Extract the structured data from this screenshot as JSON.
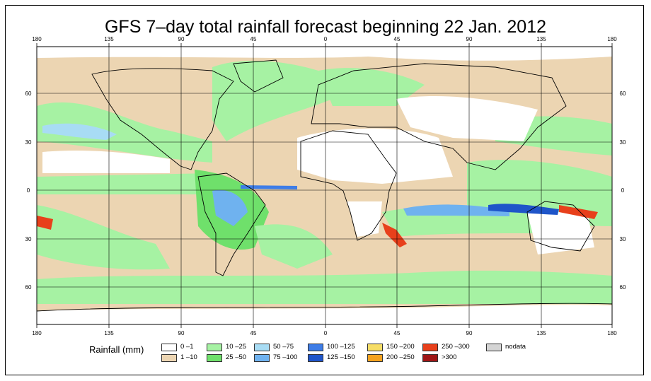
{
  "title": "GFS 7–day total rainfall forecast beginning 22 Jan. 2012",
  "lon_ticks": [
    "180",
    "135",
    "90",
    "45",
    "0",
    "45",
    "90",
    "135",
    "180"
  ],
  "lat_ticks": [
    "60",
    "30",
    "0",
    "30",
    "60"
  ],
  "legend": {
    "title": "Rainfall (mm)",
    "items": [
      {
        "label": "0 –1",
        "color": "#ffffff"
      },
      {
        "label": "1 –10",
        "color": "#ecd5b2"
      },
      {
        "label": "10 –25",
        "color": "#a6f2a3"
      },
      {
        "label": "25 –50",
        "color": "#6fe06b"
      },
      {
        "label": "50 –75",
        "color": "#a8dcf4"
      },
      {
        "label": "75 –100",
        "color": "#6fb2ef"
      },
      {
        "label": "100 –125",
        "color": "#3e7de7"
      },
      {
        "label": "125 –150",
        "color": "#1f55c9"
      },
      {
        "label": "150 –200",
        "color": "#f6dd66"
      },
      {
        "label": "200 –250",
        "color": "#f4a21f"
      },
      {
        "label": "250 –300",
        "color": "#e8401b"
      },
      {
        "label": ">300",
        "color": "#9e1616"
      },
      {
        "label": "nodata",
        "color": "#d4d4d4"
      }
    ]
  }
}
